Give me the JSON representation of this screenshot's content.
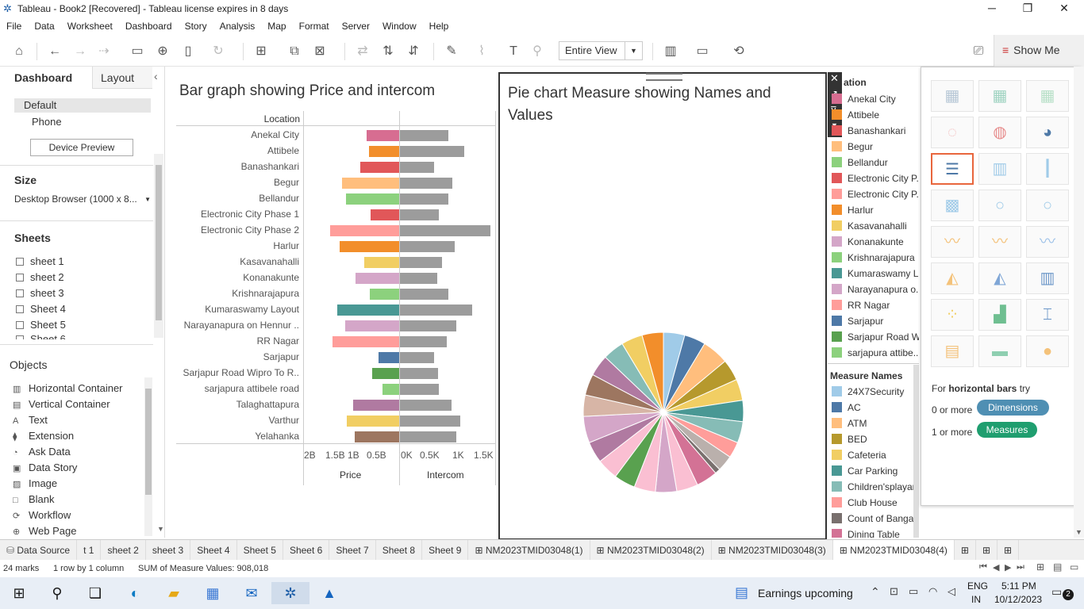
{
  "window": {
    "title": "Tableau - Book2 [Recovered] - Tableau license expires in 8 days"
  },
  "menu": [
    "File",
    "Data",
    "Worksheet",
    "Dashboard",
    "Story",
    "Analysis",
    "Map",
    "Format",
    "Server",
    "Window",
    "Help"
  ],
  "toolbar": {
    "view_select": "Entire View",
    "show_me": "Show Me"
  },
  "left": {
    "tab_dashboard": "Dashboard",
    "tab_layout": "Layout",
    "devices": [
      "Default",
      "Phone"
    ],
    "device_preview": "Device Preview",
    "size_label": "Size",
    "size_value": "Desktop Browser (1000 x 8...",
    "sheets_label": "Sheets",
    "sheets": [
      "sheet 1",
      "sheet 2",
      "sheet 3",
      "Sheet 4",
      "Sheet 5",
      "Sheet 6"
    ],
    "objects_label": "Objects",
    "objects": [
      "Horizontal Container",
      "Vertical Container",
      "Text",
      "Extension",
      "Ask Data",
      "Data Story",
      "Image",
      "Blank",
      "Workflow",
      "Web Page"
    ]
  },
  "chart_data": [
    {
      "type": "bar",
      "title": "Bar graph showing Price and intercom",
      "row_header": "Location",
      "categories": [
        "Anekal City",
        "Attibele",
        "Banashankari",
        "Begur",
        "Bellandur",
        "Electronic City Phase 1",
        "Electronic City Phase 2",
        "Harlur",
        "Kasavanahalli",
        "Konanakunte",
        "Krishnarajapura",
        "Kumaraswamy Layout",
        "Narayanapura on Hennur ..",
        "RR Nagar",
        "Sarjapur",
        "Sarjapur Road Wipro To R..",
        "sarjapura attibele road",
        "Talaghattapura",
        "Varthur",
        "Yelahanka"
      ],
      "series": [
        {
          "name": "Price",
          "values": [
            0.7,
            0.65,
            0.85,
            1.25,
            1.15,
            0.62,
            1.5,
            1.3,
            0.76,
            0.95,
            0.63,
            1.35,
            1.17,
            1.45,
            0.45,
            0.58,
            0.36,
            1.0,
            1.13,
            0.97
          ],
          "xlim": [
            2,
            0
          ],
          "ticks": [
            "2B",
            "1.5B",
            "1B",
            "0.5B"
          ]
        },
        {
          "name": "Intercom",
          "values": [
            0.8,
            1.07,
            0.57,
            0.87,
            0.8,
            0.65,
            1.5,
            0.91,
            0.7,
            0.62,
            0.8,
            1.2,
            0.94,
            0.78,
            0.57,
            0.63,
            0.64,
            0.85,
            1.0,
            0.94
          ],
          "xlim": [
            0,
            1.5
          ],
          "ticks": [
            "0K",
            "0.5K",
            "1K",
            "1.5K"
          ]
        }
      ],
      "colors": [
        "#d76d91",
        "#f28e2b",
        "#e15759",
        "#ffbe7d",
        "#8cd17d",
        "#e15759",
        "#ff9d9a",
        "#f28e2b",
        "#f1ce63",
        "#d4a6c8",
        "#8cd17d",
        "#499894",
        "#d4a6c8",
        "#ff9d9a",
        "#4e79a7",
        "#59a14f",
        "#8cd17d",
        "#b07aa1",
        "#f1ce63",
        "#9d7660"
      ],
      "intercom_color": "#9c9c9c"
    },
    {
      "type": "pie",
      "title": "Pie chart Measure showing  Names and Values",
      "slices": [
        4,
        4,
        5,
        4,
        4,
        4,
        4,
        3,
        3,
        1,
        4,
        4,
        4,
        4,
        4,
        4,
        4,
        5,
        4,
        4,
        4,
        4,
        4,
        4
      ],
      "colors": [
        "#a0cbe8",
        "#4e79a7",
        "#ffbe7d",
        "#b6992d",
        "#f1ce63",
        "#499894",
        "#86bcb6",
        "#ff9d9a",
        "#bab0ac",
        "#79706e",
        "#d37295",
        "#fabfd2",
        "#d4a6c8",
        "#fabfd2",
        "#59a14f",
        "#fabfd2",
        "#b07aa1",
        "#d4a6c8",
        "#d7b5a6",
        "#9d7660",
        "#b07aa1",
        "#86bcb6",
        "#f1ce63",
        "#f28e2b"
      ]
    }
  ],
  "legend": {
    "header": "ation",
    "locations": [
      [
        "Anekal City",
        "#d76d91"
      ],
      [
        "Attibele",
        "#f28e2b"
      ],
      [
        "Banashankari",
        "#e15759"
      ],
      [
        "Begur",
        "#ffbe7d"
      ],
      [
        "Bellandur",
        "#8cd17d"
      ],
      [
        "Electronic City P..",
        "#e15759"
      ],
      [
        "Electronic City P..",
        "#ff9d9a"
      ],
      [
        "Harlur",
        "#f28e2b"
      ],
      [
        "Kasavanahalli",
        "#f1ce63"
      ],
      [
        "Konanakunte",
        "#d4a6c8"
      ],
      [
        "Krishnarajapura",
        "#8cd17d"
      ],
      [
        "Kumaraswamy L..",
        "#499894"
      ],
      [
        "Narayanapura o..",
        "#d4a6c8"
      ],
      [
        "RR Nagar",
        "#ff9d9a"
      ],
      [
        "Sarjapur",
        "#4e79a7"
      ],
      [
        "Sarjapur Road W..",
        "#59a14f"
      ],
      [
        "sarjapura attibe..",
        "#8cd17d"
      ]
    ],
    "measure_header": "Measure Names",
    "measures": [
      [
        "24X7Security",
        "#a0cbe8"
      ],
      [
        "AC",
        "#4e79a7"
      ],
      [
        "ATM",
        "#ffbe7d"
      ],
      [
        "BED",
        "#b6992d"
      ],
      [
        "Cafeteria",
        "#f1ce63"
      ],
      [
        "Car Parking",
        "#499894"
      ],
      [
        "Children'splayar..",
        "#86bcb6"
      ],
      [
        "Club House",
        "#ff9d9a"
      ],
      [
        "Count of Bangalor..",
        "#79706e"
      ],
      [
        "Dining Table",
        "#d37295"
      ]
    ]
  },
  "showme": {
    "for_text": "For",
    "bold_text": "horizontal bars",
    "try_text": "try",
    "dims_prefix": "0 or more",
    "dims": "Dimensions",
    "meas_prefix": "1 or more",
    "meas": "Measures"
  },
  "tabs": [
    "Data Source",
    "t 1",
    "sheet 2",
    "sheet 3",
    "Sheet 4",
    "Sheet 5",
    "Sheet 6",
    "Sheet 7",
    "Sheet 8",
    "Sheet 9",
    "NM2023TMID03048(1)",
    "NM2023TMID03048(2)",
    "NM2023TMID03048(3)",
    "NM2023TMID03048(4)"
  ],
  "status": {
    "marks": "24 marks",
    "rows": "1 row by 1 column",
    "sum": "SUM of Measure Values: 908,018"
  },
  "taskbar": {
    "weather": "Earnings upcoming",
    "lang1": "ENG",
    "lang2": "IN",
    "time": "5:11 PM",
    "date": "10/12/2023",
    "notif": "2"
  }
}
